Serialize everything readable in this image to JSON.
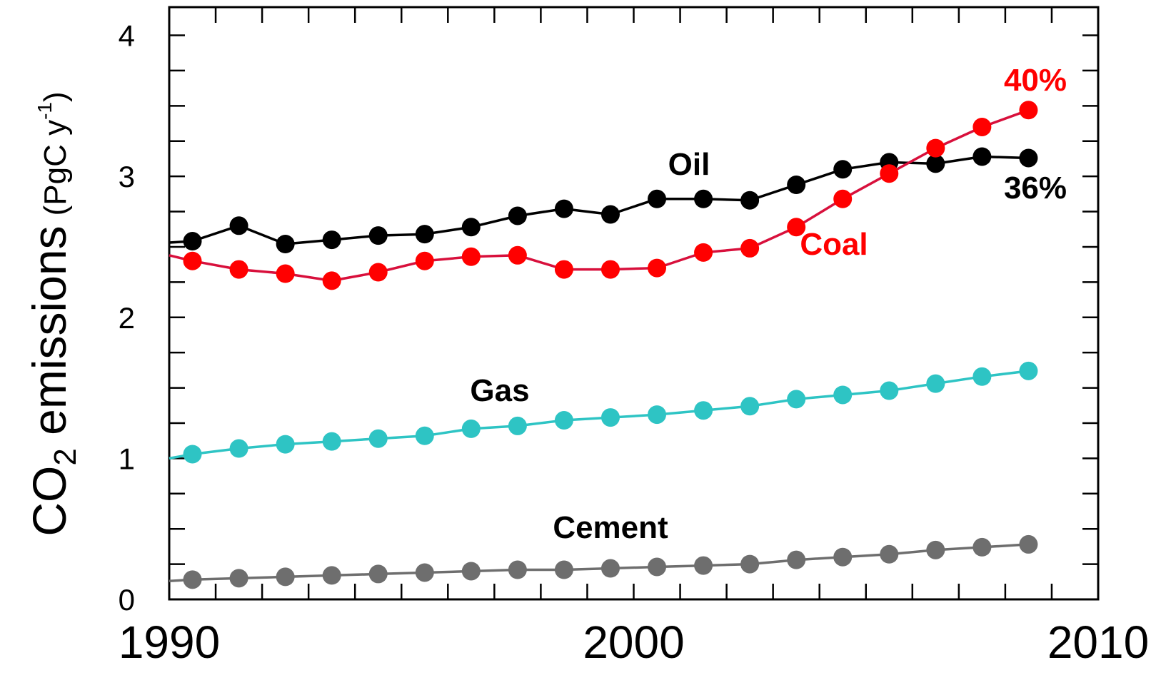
{
  "chart_data": {
    "type": "line",
    "xlim": [
      1990,
      2010
    ],
    "ylim": [
      0,
      4.2
    ],
    "x_ticks": [
      1990,
      2000,
      2010
    ],
    "y_ticks": [
      0,
      1,
      2,
      3,
      4
    ],
    "ylabel_parts": {
      "co": "CO",
      "sub": "2",
      "rest": " emissions",
      "unit_open": "(PgC y",
      "unit_sup": "-1",
      "unit_close": ")"
    },
    "grid": false,
    "x": [
      1990.5,
      1991.5,
      1992.5,
      1993.5,
      1994.5,
      1995.5,
      1996.5,
      1997.5,
      1998.5,
      1999.5,
      2000.5,
      2001.5,
      2002.5,
      2003.5,
      2004.5,
      2005.5,
      2006.5,
      2007.5,
      2008.5
    ],
    "series": [
      {
        "name": "Oil",
        "color": "#000000",
        "line_start": [
          1990,
          2.53
        ],
        "values": [
          2.54,
          2.65,
          2.52,
          2.55,
          2.58,
          2.59,
          2.64,
          2.72,
          2.77,
          2.73,
          2.84,
          2.84,
          2.83,
          2.94,
          3.05,
          3.1,
          3.09,
          3.14,
          3.13
        ]
      },
      {
        "name": "Coal",
        "color": "#ff0000",
        "line_color": "#d8103c",
        "line_start": [
          1990,
          2.44
        ],
        "values": [
          2.4,
          2.34,
          2.31,
          2.26,
          2.32,
          2.4,
          2.43,
          2.44,
          2.34,
          2.34,
          2.35,
          2.46,
          2.49,
          2.64,
          2.84,
          3.02,
          3.2,
          3.35,
          3.47
        ]
      },
      {
        "name": "Gas",
        "color": "#2ec4c4",
        "line_start": [
          1990,
          1.0
        ],
        "values": [
          1.03,
          1.07,
          1.1,
          1.12,
          1.14,
          1.16,
          1.21,
          1.23,
          1.27,
          1.29,
          1.31,
          1.34,
          1.37,
          1.42,
          1.45,
          1.48,
          1.53,
          1.58,
          1.62
        ]
      },
      {
        "name": "Cement",
        "color": "#6e6e6e",
        "line_start": [
          1990,
          0.13
        ],
        "values": [
          0.14,
          0.15,
          0.16,
          0.17,
          0.18,
          0.19,
          0.2,
          0.21,
          0.21,
          0.22,
          0.23,
          0.24,
          0.25,
          0.28,
          0.3,
          0.32,
          0.35,
          0.37,
          0.39
        ]
      }
    ],
    "annotations": {
      "oil": "Oil",
      "coal": "Coal",
      "gas": "Gas",
      "cement": "Cement",
      "coal_pct": "40%",
      "oil_pct": "36%"
    },
    "annotation_colors": {
      "oil": "#000000",
      "coal": "#ff0000",
      "gas": "#000000",
      "cement": "#000000",
      "coal_pct": "#ff0000",
      "oil_pct": "#000000"
    }
  }
}
